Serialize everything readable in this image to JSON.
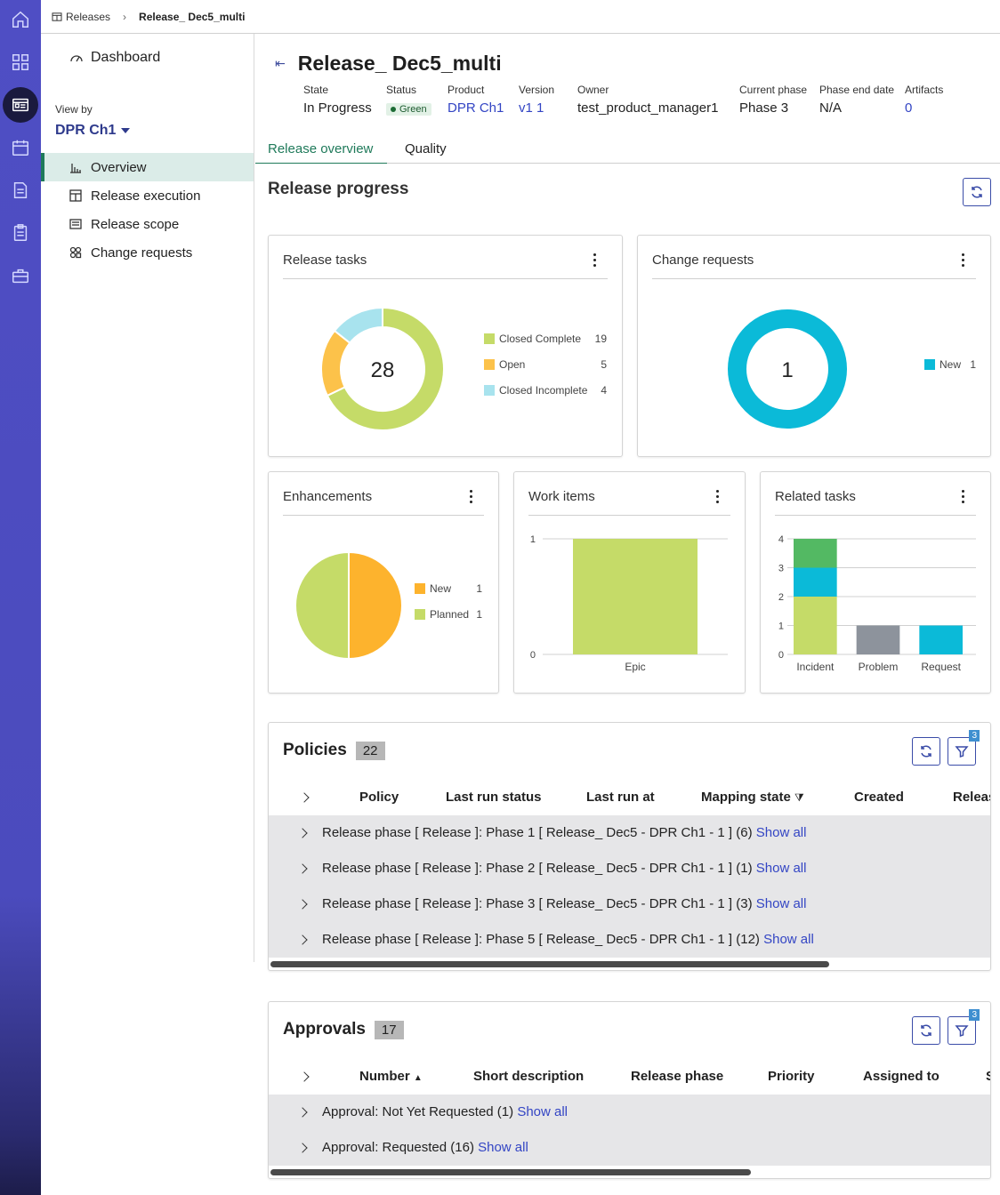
{
  "rail": {
    "icons": [
      "home-icon",
      "apps-grid-icon",
      "releases-icon",
      "calendar-icon",
      "document-icon",
      "clipboard-icon",
      "toolbox-icon"
    ]
  },
  "breadcrumb": {
    "root": "Releases",
    "current": "Release_ Dec5_multi"
  },
  "leftnav": {
    "dashboard": "Dashboard",
    "view_by_label": "View by",
    "view_by_value": "DPR Ch1",
    "items": [
      {
        "label": "Overview",
        "active": true
      },
      {
        "label": "Release execution"
      },
      {
        "label": "Release scope"
      },
      {
        "label": "Change requests"
      }
    ]
  },
  "header": {
    "title": "Release_ Dec5_multi",
    "meta": [
      {
        "label": "State",
        "value": "In Progress"
      },
      {
        "label": "Status",
        "value": "Green"
      },
      {
        "label": "Product",
        "value": "DPR Ch1"
      },
      {
        "label": "Version",
        "value": "v1 1"
      },
      {
        "label": "Owner",
        "value": "test_product_manager1"
      },
      {
        "label": "Current phase",
        "value": "Phase 3"
      },
      {
        "label": "Phase end date",
        "value": "N/A"
      },
      {
        "label": "Artifacts",
        "value": "0"
      }
    ]
  },
  "tabs": [
    "Release overview",
    "Quality"
  ],
  "progress": {
    "title": "Release progress",
    "release_tasks": {
      "title": "Release tasks",
      "total": "28",
      "legend": [
        {
          "label": "Closed Complete",
          "value": "19",
          "color": "#c5db68"
        },
        {
          "label": "Open",
          "value": "5",
          "color": "#fcc24a"
        },
        {
          "label": "Closed Incomplete",
          "value": "4",
          "color": "#a8e3ee"
        }
      ]
    },
    "change_requests": {
      "title": "Change requests",
      "total": "1",
      "legend": [
        {
          "label": "New",
          "value": "1",
          "color": "#0bbad8"
        }
      ]
    },
    "enhancements": {
      "title": "Enhancements",
      "legend": [
        {
          "label": "New",
          "value": "1",
          "color": "#fdb32d"
        },
        {
          "label": "Planned",
          "value": "1",
          "color": "#c5db68"
        }
      ]
    },
    "work_items": {
      "title": "Work items"
    },
    "related_tasks": {
      "title": "Related tasks"
    }
  },
  "chart_data": [
    {
      "type": "pie",
      "title": "Release tasks",
      "categories": [
        "Closed Complete",
        "Open",
        "Closed Incomplete"
      ],
      "values": [
        19,
        5,
        4
      ],
      "center_label": "28"
    },
    {
      "type": "pie",
      "title": "Change requests",
      "categories": [
        "New"
      ],
      "values": [
        1
      ],
      "center_label": "1"
    },
    {
      "type": "pie",
      "title": "Enhancements",
      "categories": [
        "New",
        "Planned"
      ],
      "values": [
        1,
        1
      ]
    },
    {
      "type": "bar",
      "title": "Work items",
      "categories": [
        "Epic"
      ],
      "values": [
        1
      ],
      "ylim": [
        0,
        1
      ],
      "yticks": [
        "0",
        "1"
      ],
      "color": "#c5db68"
    },
    {
      "type": "bar",
      "title": "Related tasks",
      "categories": [
        "Incident",
        "Problem",
        "Request"
      ],
      "ylim": [
        0,
        4
      ],
      "yticks": [
        "0",
        "1",
        "2",
        "3",
        "4"
      ],
      "stacks": [
        [
          {
            "value": 2,
            "color": "#c5db68"
          },
          {
            "value": 1,
            "color": "#0bbad8"
          },
          {
            "value": 1,
            "color": "#53b963"
          }
        ],
        [
          {
            "value": 1,
            "color": "#8d939c"
          }
        ],
        [
          {
            "value": 1,
            "color": "#0bbad8"
          }
        ]
      ]
    }
  ],
  "policies": {
    "title": "Policies",
    "count": "22",
    "filter_count": "3",
    "columns": [
      "Policy",
      "Last run status",
      "Last run at",
      "Mapping state",
      "Created",
      "Releas"
    ],
    "groups": [
      {
        "text": "Release phase [ Release ]: Phase 1 [ Release_ Dec5 - DPR Ch1 - 1 ] (6)",
        "link": "Show all"
      },
      {
        "text": "Release phase [ Release ]: Phase 2 [ Release_ Dec5 - DPR Ch1 - 1 ] (1)",
        "link": "Show all"
      },
      {
        "text": "Release phase [ Release ]: Phase 3 [ Release_ Dec5 - DPR Ch1 - 1 ] (3)",
        "link": "Show all"
      },
      {
        "text": "Release phase [ Release ]: Phase 5 [ Release_ Dec5 - DPR Ch1 - 1 ] (12)",
        "link": "Show all"
      }
    ]
  },
  "approvals": {
    "title": "Approvals",
    "count": "17",
    "filter_count": "3",
    "columns": [
      "Number",
      "Short description",
      "Release phase",
      "Priority",
      "Assigned to",
      "S"
    ],
    "groups": [
      {
        "text": "Approval: Not Yet Requested (1)",
        "link": "Show all"
      },
      {
        "text": "Approval: Requested (16)",
        "link": "Show all"
      }
    ]
  }
}
